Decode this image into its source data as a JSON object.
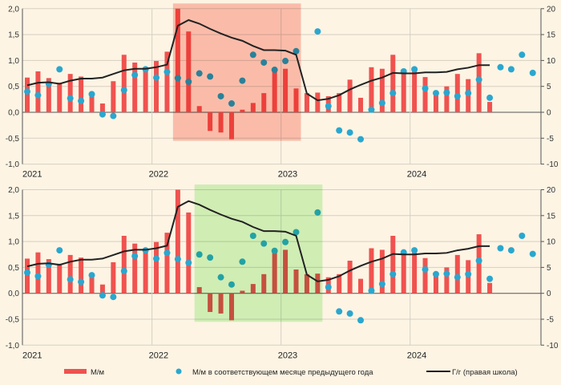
{
  "colors": {
    "background": "#fdf4e4",
    "bars": "#f0524f",
    "dots": "#2aa7cf",
    "line": "#222222",
    "grid": "#d6cfc2",
    "highlight_top": "#fa8c7c",
    "highlight_bottom": "#9cf08a"
  },
  "chart_data": [
    {
      "type": "bar",
      "left_axis": {
        "ylim": [
          -1.0,
          2.0
        ],
        "ticks": [
          "2,0",
          "1,5",
          "1,0",
          "0,5",
          "0,0",
          "-0,5",
          "-1,0"
        ]
      },
      "right_axis": {
        "ylim": [
          -10,
          20
        ],
        "ticks": [
          "20",
          "15",
          "10",
          "5",
          "0",
          "-5",
          "-10"
        ]
      },
      "x_tick_labels": [
        "2021",
        "2022",
        "2023",
        "2024"
      ],
      "grid": true,
      "highlight": {
        "from": "2022-03",
        "to": "2023-02"
      }
    },
    {
      "type": "bar",
      "left_axis": {
        "ylim": [
          -1.0,
          2.0
        ],
        "ticks": [
          "2,0",
          "1,5",
          "1,0",
          "0,5",
          "0,0",
          "-0,5",
          "-1,0"
        ]
      },
      "right_axis": {
        "ylim": [
          -10,
          20
        ],
        "ticks": [
          "20",
          "15",
          "10",
          "5",
          "0",
          "-5",
          "-10"
        ]
      },
      "x_tick_labels": [
        "2021",
        "2022",
        "2023",
        "2024"
      ],
      "grid": true,
      "highlight": {
        "from": "2022-05",
        "to": "2023-04"
      }
    }
  ],
  "series_data": {
    "months": [
      "2021-01",
      "2021-02",
      "2021-03",
      "2021-04",
      "2021-05",
      "2021-06",
      "2021-07",
      "2021-08",
      "2021-09",
      "2021-10",
      "2021-11",
      "2021-12",
      "2022-01",
      "2022-02",
      "2022-03",
      "2022-04",
      "2022-05",
      "2022-06",
      "2022-07",
      "2022-08",
      "2022-09",
      "2022-10",
      "2022-11",
      "2022-12",
      "2023-01",
      "2023-02",
      "2023-03",
      "2023-04",
      "2023-05",
      "2023-06",
      "2023-07",
      "2023-08",
      "2023-09",
      "2023-10",
      "2023-11",
      "2023-12",
      "2024-01",
      "2024-02",
      "2024-03",
      "2024-04",
      "2024-05",
      "2024-06",
      "2024-07",
      "2024-08",
      "2024-09",
      "2024-10",
      "2024-11",
      "2024-12"
    ],
    "mm": {
      "name": "М/м",
      "axis": "left",
      "values": [
        0.67,
        0.79,
        0.66,
        0.57,
        0.74,
        0.69,
        0.35,
        0.17,
        0.6,
        1.11,
        0.96,
        0.83,
        0.99,
        1.17,
        2.0,
        1.56,
        0.12,
        -0.36,
        -0.39,
        -0.52,
        0.05,
        0.18,
        0.37,
        0.8,
        0.84,
        0.46,
        0.37,
        0.38,
        0.31,
        0.37,
        0.63,
        0.28,
        0.87,
        0.84,
        1.11,
        0.79,
        0.8,
        0.68,
        0.37,
        0.5,
        0.74,
        0.64,
        1.14,
        0.2
      ]
    },
    "mm_prev_year": {
      "name": "М/м в соответствующем месяце предыдущего года",
      "axis": "left",
      "values": [
        0.4,
        0.33,
        0.55,
        0.83,
        0.27,
        0.22,
        0.35,
        -0.04,
        -0.07,
        0.43,
        0.72,
        0.83,
        0.67,
        0.78,
        0.66,
        0.59,
        0.75,
        0.69,
        0.31,
        0.17,
        0.61,
        1.11,
        0.96,
        0.82,
        0.99,
        1.18,
        null,
        1.56,
        0.12,
        -0.35,
        -0.39,
        -0.52,
        0.05,
        0.18,
        0.37,
        0.79,
        0.83,
        0.46,
        0.37,
        0.38,
        0.31,
        0.37,
        0.63,
        0.28,
        0.87,
        0.83,
        1.11,
        0.76
      ]
    },
    "yy": {
      "name": "Г/г (правая школа)",
      "axis": "right",
      "values": [
        5.2,
        5.7,
        5.8,
        5.5,
        6.1,
        6.5,
        6.5,
        6.7,
        7.4,
        8.1,
        8.4,
        8.4,
        8.7,
        9.2,
        16.7,
        17.8,
        17.1,
        16.1,
        15.2,
        14.4,
        13.8,
        12.8,
        12.0,
        12.0,
        11.9,
        11.1,
        3.6,
        2.3,
        2.6,
        3.3,
        4.4,
        5.3,
        6.1,
        6.7,
        7.6,
        7.5,
        7.5,
        7.7,
        7.7,
        7.8,
        8.3,
        8.6,
        9.1,
        9.1
      ]
    }
  },
  "legend": {
    "placement": "bottom",
    "mm": "М/м",
    "mm_prev_year": "М/м в соответствующем месяце предыдущего года",
    "yy": "Г/г (правая школа)"
  }
}
